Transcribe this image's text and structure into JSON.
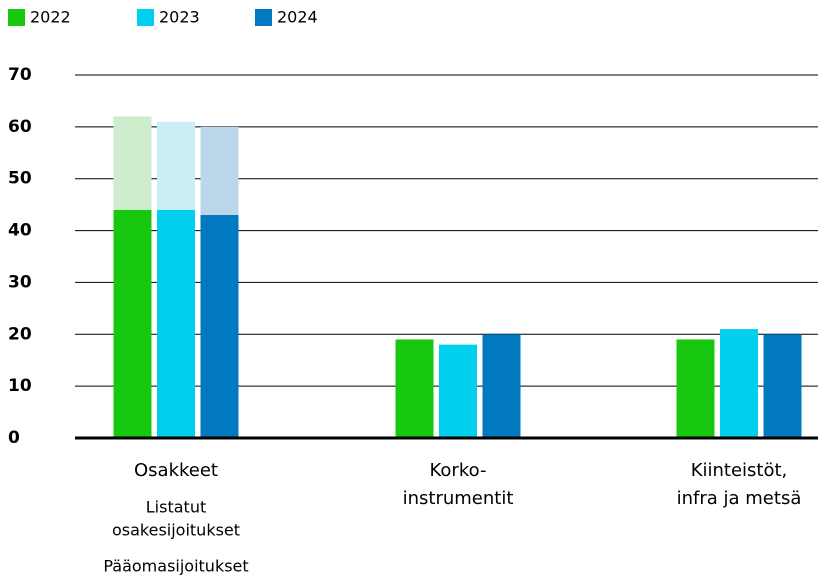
{
  "chart_data": {
    "type": "bar",
    "categories": [
      [
        "Osakkeet"
      ],
      [
        "Korko-",
        "instrumentit"
      ],
      [
        "Kiinteistöt,",
        "infra ja metsä"
      ]
    ],
    "sublabels": [
      [
        "Listatut",
        "osakesijoitukset"
      ],
      [
        "Pääomasijoitukset"
      ]
    ],
    "series": [
      {
        "name": "2022",
        "color": "#17c80e",
        "upper_color": "#cdeccb",
        "values": [
          44,
          19,
          19
        ],
        "upper_values": [
          18,
          null,
          null
        ]
      },
      {
        "name": "2023",
        "color": "#00cfee",
        "upper_color": "#c9eef6",
        "values": [
          44,
          18,
          21
        ],
        "upper_values": [
          17,
          null,
          null
        ]
      },
      {
        "name": "2024",
        "color": "#0079c1",
        "upper_color": "#bcd6ea",
        "values": [
          43,
          20,
          20
        ],
        "upper_values": [
          17,
          null,
          null
        ]
      }
    ],
    "ylim": [
      0,
      70
    ],
    "yticks": [
      0,
      10,
      20,
      30,
      40,
      50,
      60,
      70
    ],
    "grid": true,
    "legend": "top-left"
  }
}
